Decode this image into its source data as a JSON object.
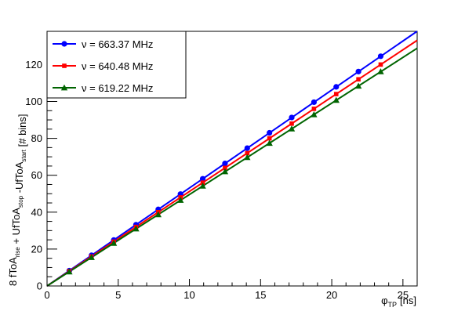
{
  "chart_data": {
    "type": "scatter",
    "title": "",
    "xlabel": {
      "symbol": "φ",
      "sub": "TP",
      "unit": "[ns]"
    },
    "ylabel": {
      "parts": [
        {
          "text": "8 fToA",
          "sub": "rise"
        },
        {
          "text": " + UfToA",
          "sub": "stop"
        },
        {
          "text": " -UfToA",
          "sub": "start"
        },
        {
          "text": " [# bins]",
          "sub": ""
        }
      ]
    },
    "xlim": [
      0,
      26
    ],
    "ylim": [
      0,
      138
    ],
    "x_ticks": [
      0,
      5,
      10,
      15,
      20,
      25
    ],
    "y_ticks": [
      0,
      20,
      40,
      60,
      80,
      100,
      120
    ],
    "grid": false,
    "legend_position": "top-left",
    "x": [
      1.5625,
      3.125,
      4.6875,
      6.25,
      7.8125,
      9.375,
      10.9375,
      12.5,
      14.0625,
      15.625,
      17.1875,
      18.75,
      20.3125,
      21.875,
      23.4375
    ],
    "series": [
      {
        "name": "ν = 663.37  MHz",
        "color": "#0000ff",
        "marker": "circle",
        "values": [
          8.3,
          16.6,
          24.9,
          33.2,
          41.5,
          49.8,
          58.1,
          66.4,
          74.7,
          83.0,
          91.3,
          99.6,
          107.9,
          116.2,
          124.5
        ],
        "fit": {
          "slope": 5.31,
          "intercept": 0
        }
      },
      {
        "name": "ν = 640.48 MHz",
        "color": "#ff0000",
        "marker": "square",
        "values": [
          8.0,
          16.0,
          24.0,
          32.0,
          40.0,
          48.0,
          56.0,
          64.0,
          72.0,
          80.0,
          88.0,
          96.0,
          104.0,
          112.0,
          120.0
        ],
        "fit": {
          "slope": 5.12,
          "intercept": 0
        }
      },
      {
        "name": "ν = 619.22 MHz",
        "color": "#006400",
        "marker": "triangle",
        "values": [
          7.7,
          15.5,
          23.2,
          31.0,
          38.7,
          46.5,
          54.2,
          62.0,
          69.7,
          77.4,
          85.2,
          92.9,
          100.7,
          108.4,
          116.2
        ],
        "fit": {
          "slope": 4.955,
          "intercept": 0
        }
      }
    ]
  }
}
